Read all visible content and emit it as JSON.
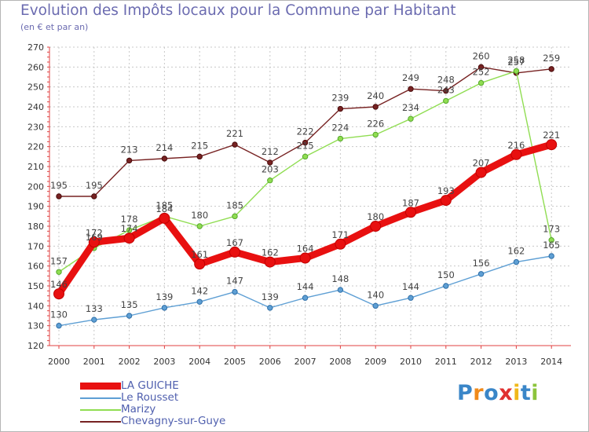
{
  "header": {
    "title": "Evolution des Impôts locaux pour la Commune par Habitant",
    "subtitle": "(en € et par an)"
  },
  "chart_data": {
    "type": "line",
    "title": "Evolution des Impôts locaux pour la Commune par Habitant",
    "subtitle": "(en € et par an)",
    "xlabel": "",
    "ylabel": "",
    "categories": [
      "2000",
      "2001",
      "2002",
      "2003",
      "2004",
      "2005",
      "2006",
      "2007",
      "2008",
      "2009",
      "2010",
      "2011",
      "2012",
      "2013",
      "2014"
    ],
    "ylim": [
      120,
      270
    ],
    "yticks": [
      120,
      130,
      140,
      150,
      160,
      170,
      180,
      190,
      200,
      210,
      220,
      230,
      240,
      250,
      260,
      270
    ],
    "grid": true,
    "legend_position": "bottom-left",
    "series": [
      {
        "name": "LA GUICHE",
        "color": "#e81010",
        "values": [
          146,
          172,
          174,
          184,
          161,
          167,
          162,
          164,
          171,
          180,
          187,
          193,
          207,
          216,
          221
        ]
      },
      {
        "name": "Le Rousset",
        "color": "#5e9fd4",
        "values": [
          130,
          133,
          135,
          139,
          142,
          147,
          139,
          144,
          148,
          140,
          144,
          150,
          156,
          162,
          165
        ]
      },
      {
        "name": "Marizy",
        "color": "#90dd52",
        "values": [
          157,
          169,
          178,
          185,
          180,
          185,
          203,
          215,
          224,
          226,
          234,
          243,
          252,
          258,
          173
        ]
      },
      {
        "name": "Chevagny-sur-Guye",
        "color": "#772222",
        "values": [
          195,
          195,
          213,
          214,
          215,
          221,
          212,
          222,
          239,
          240,
          249,
          248,
          260,
          257,
          259
        ]
      }
    ]
  },
  "legend": {
    "items": [
      {
        "label": "LA GUICHE",
        "color": "#e81010"
      },
      {
        "label": "Le Rousset",
        "color": "#5e9fd4"
      },
      {
        "label": "Marizy",
        "color": "#90dd52"
      },
      {
        "label": "Chevagny-sur-Guye",
        "color": "#772222"
      }
    ]
  },
  "logo": {
    "letters": [
      "P",
      "r",
      "o",
      "x",
      "i",
      "t",
      "i"
    ],
    "colors": [
      "#3a86c8",
      "#f08a1a",
      "#3a86c8",
      "#e03030",
      "#f0b81a",
      "#3a86c8",
      "#8cc43c"
    ]
  }
}
